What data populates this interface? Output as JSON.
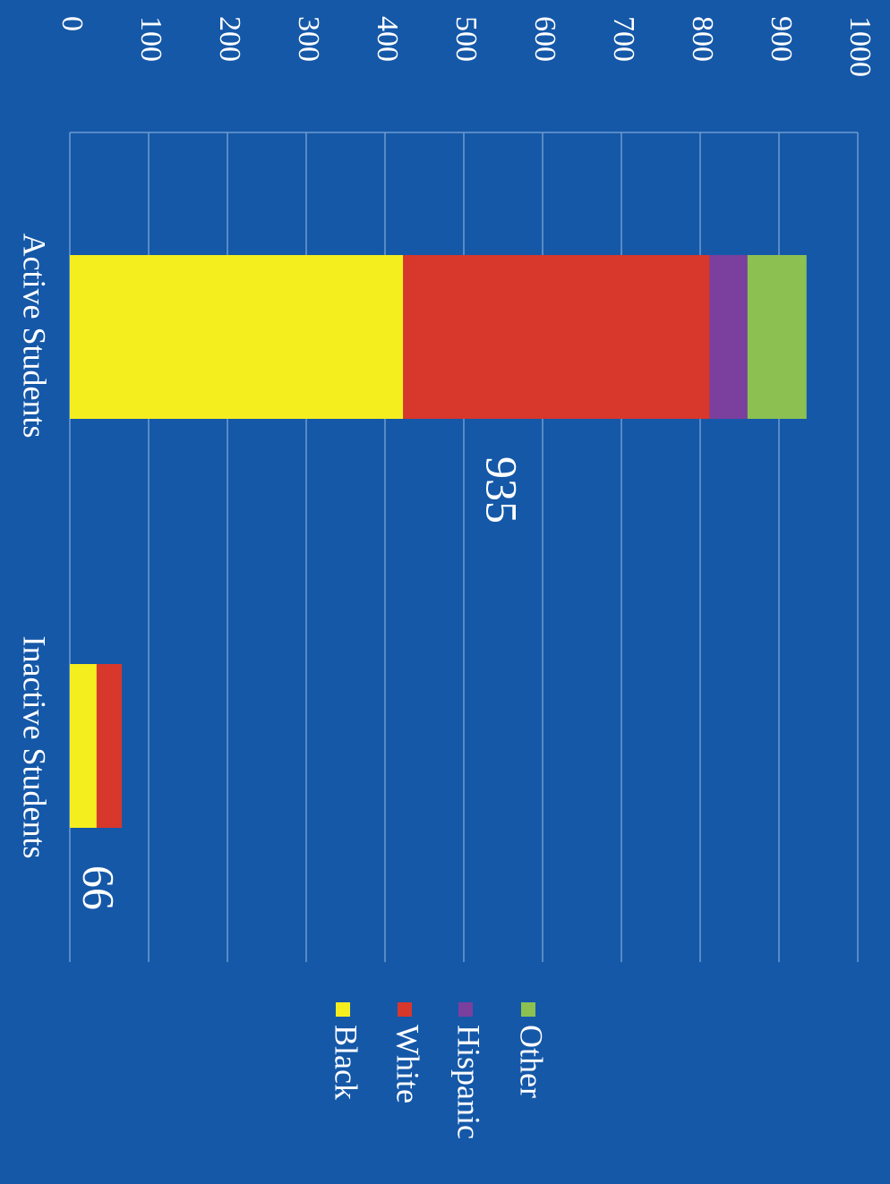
{
  "chart_data": {
    "type": "stacked_bar",
    "categories": [
      "Active Students",
      "Inactive Students"
    ],
    "series": [
      {
        "name": "Black",
        "color": "#f5ee1f",
        "values": [
          423,
          34
        ]
      },
      {
        "name": "White",
        "color": "#d8372b",
        "values": [
          389,
          32
        ]
      },
      {
        "name": "Hispanic",
        "color": "#7b3f9e",
        "values": [
          48,
          0
        ]
      },
      {
        "name": "Other",
        "color": "#8cc152",
        "values": [
          75,
          0
        ]
      }
    ],
    "totals": [
      935,
      66
    ],
    "ylim": [
      0,
      1000
    ],
    "yticks": [
      0,
      100,
      200,
      300,
      400,
      500,
      600,
      700,
      800,
      900,
      1000
    ],
    "grid": true
  }
}
